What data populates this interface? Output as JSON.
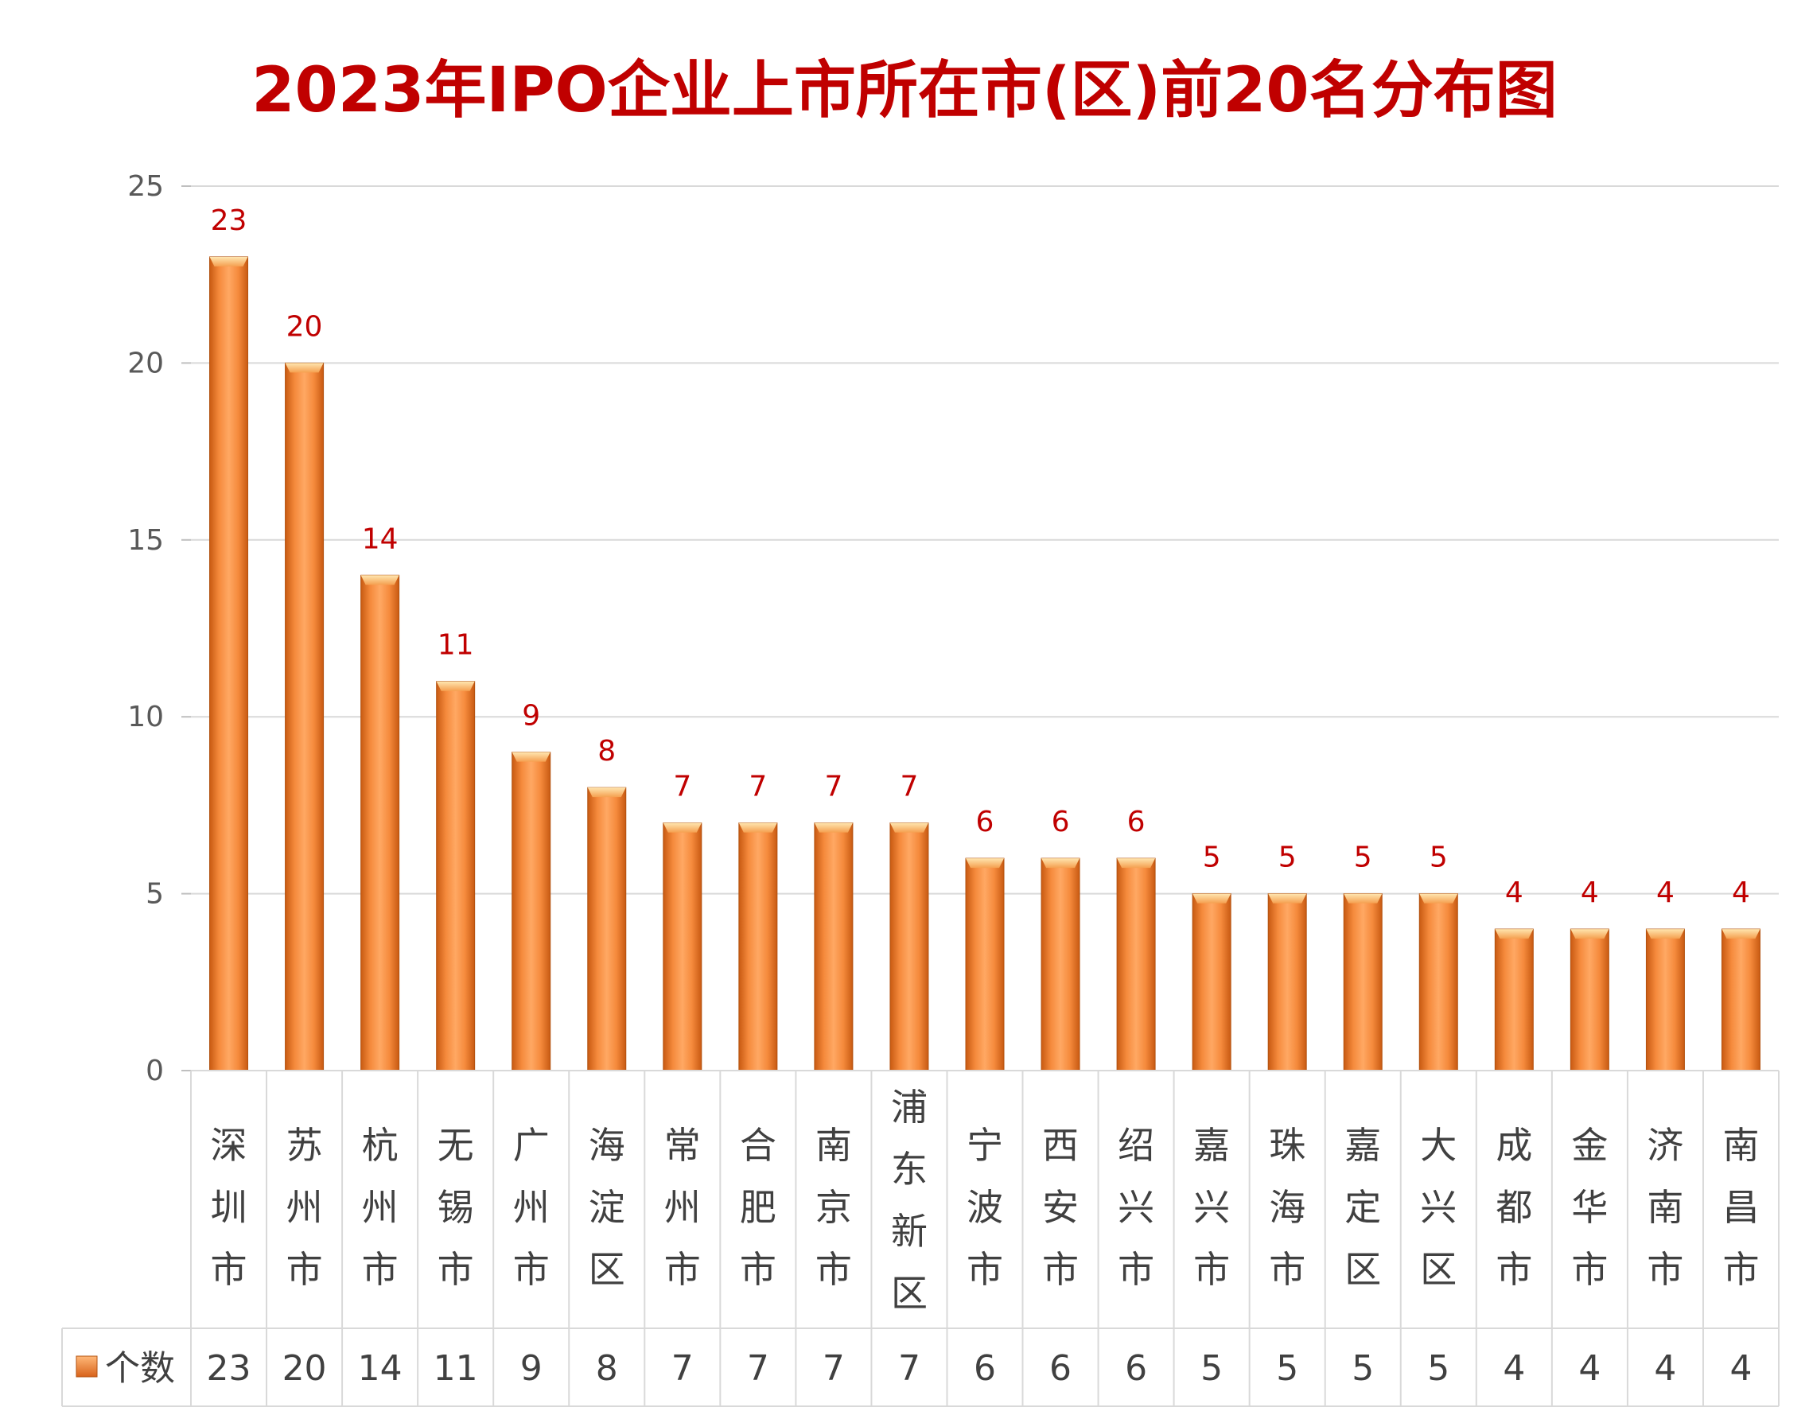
{
  "chart_data": {
    "type": "bar",
    "title": "2023年IPO企业上市所在市(区)前20名分布图",
    "categories": [
      "深圳市",
      "苏州市",
      "杭州市",
      "无锡市",
      "广州市",
      "海淀区",
      "常州市",
      "合肥市",
      "南京市",
      "浦东新区",
      "宁波市",
      "西安市",
      "绍兴市",
      "嘉兴市",
      "珠海市",
      "嘉定区",
      "大兴区",
      "成都市",
      "金华市",
      "济南市",
      "南昌市"
    ],
    "series": [
      {
        "name": "个数",
        "values": [
          23,
          20,
          14,
          11,
          9,
          8,
          7,
          7,
          7,
          7,
          6,
          6,
          6,
          5,
          5,
          5,
          5,
          4,
          4,
          4,
          4
        ]
      }
    ],
    "ylim": [
      0,
      25
    ],
    "yticks": [
      "0",
      "5",
      "10",
      "15",
      "20",
      "25"
    ],
    "grid": true,
    "data_table": true,
    "colors": {
      "bar": "#f07a2a",
      "title": "#c00000",
      "label": "#c00000"
    }
  }
}
